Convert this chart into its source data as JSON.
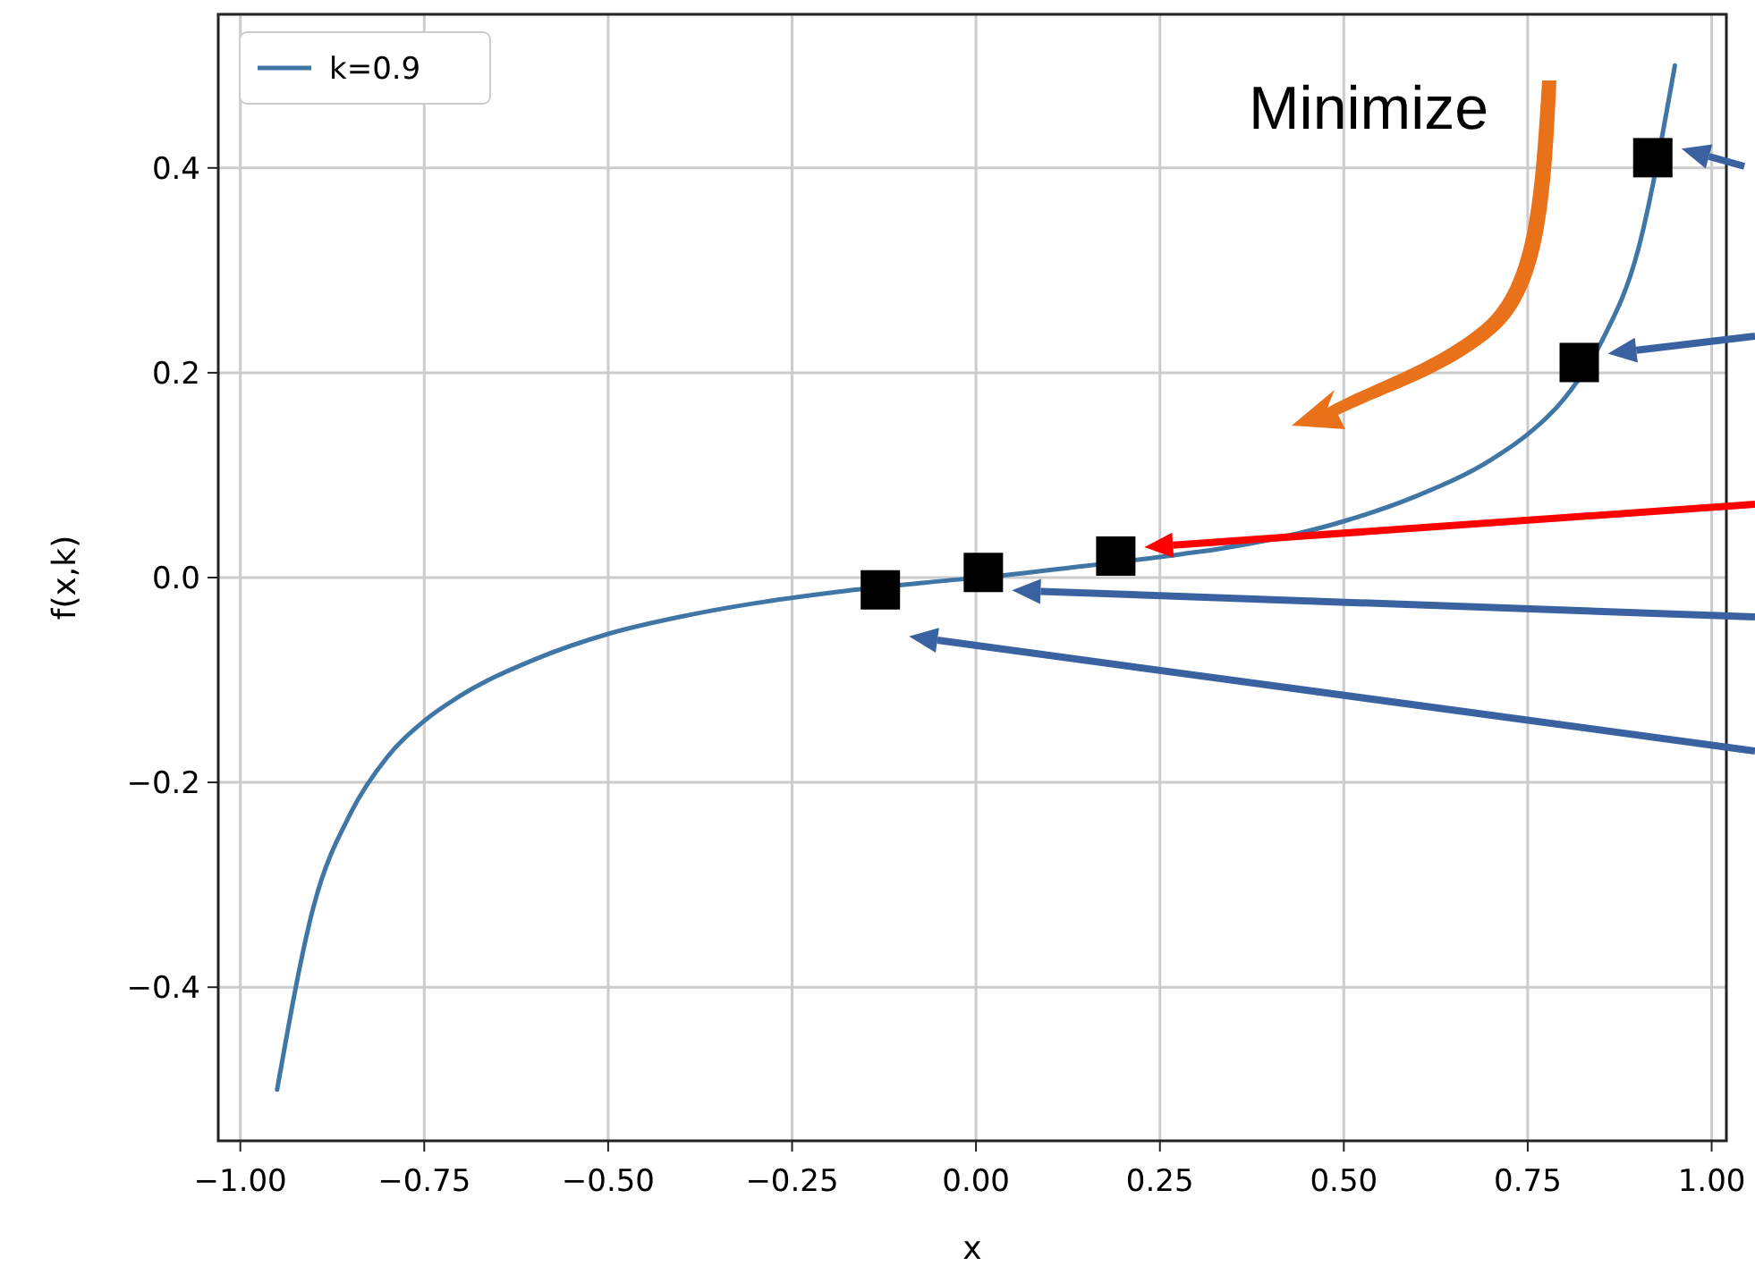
{
  "chart_data": {
    "type": "line",
    "xlabel": "x",
    "ylabel": "f(x,k)",
    "xlim": [
      -1.03,
      1.02
    ],
    "ylim": [
      -0.55,
      0.55
    ],
    "xticks": [
      {
        "value": -1,
        "label": "−1.00"
      },
      {
        "value": -0.75,
        "label": "−0.75"
      },
      {
        "value": -0.5,
        "label": "−0.50"
      },
      {
        "value": -0.25,
        "label": "−0.25"
      },
      {
        "value": 0,
        "label": "0.00"
      },
      {
        "value": 0.25,
        "label": "0.25"
      },
      {
        "value": 0.5,
        "label": "0.50"
      },
      {
        "value": 0.75,
        "label": "0.75"
      },
      {
        "value": 1,
        "label": "1.00"
      }
    ],
    "yticks": [
      {
        "value": -0.4,
        "label": "−0.4"
      },
      {
        "value": -0.2,
        "label": "−0.2"
      },
      {
        "value": 0,
        "label": "0.0"
      },
      0.2,
      0.4
    ],
    "grid": true,
    "legend": "top left",
    "annotations": [
      "Minimize"
    ],
    "series": [
      {
        "name": "k=0.9",
        "color": "#3f76a6",
        "line_style": "solid",
        "marker": "none",
        "x": [
          -0.95,
          -0.9,
          -0.85,
          -0.8,
          -0.75,
          -0.7,
          -0.6,
          -0.5,
          -0.4,
          -0.3,
          -0.2,
          -0.07,
          0.06,
          0.12,
          0.28,
          0.33,
          0.5,
          0.6,
          0.7,
          0.75,
          0.8,
          0.85,
          0.9,
          0.95
        ],
        "values": [
          -0.5,
          -0.32,
          -0.23,
          -0.175,
          -0.14,
          -0.115,
          -0.08,
          -0.055,
          -0.038,
          -0.025,
          -0.015,
          -0.005,
          0.004,
          0.009,
          0.023,
          0.028,
          0.055,
          0.08,
          0.115,
          0.14,
          0.175,
          0.23,
          0.32,
          0.5
        ]
      },
      {
        "type": "scatter",
        "color": "#000000",
        "marker": "square",
        "x": [
          -0.13,
          0.01,
          0.19,
          0.82,
          0.92
        ],
        "values": [
          -0.012,
          0.005,
          0.021,
          0.21,
          0.41
        ]
      }
    ]
  }
}
